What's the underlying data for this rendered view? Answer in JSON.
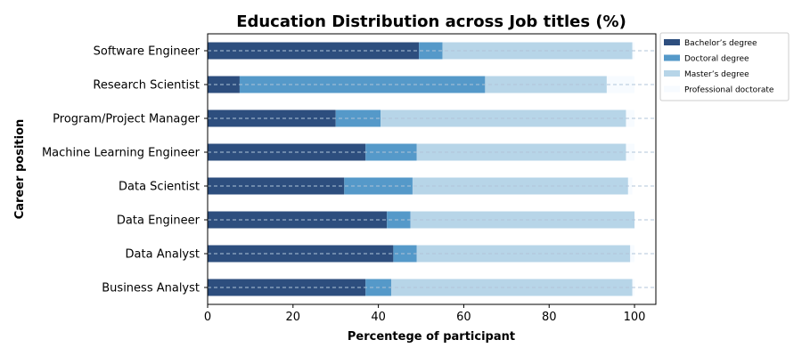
{
  "chart_data": {
    "type": "bar",
    "orientation": "horizontal",
    "stacked": true,
    "title": "Education Distribution across Job titles (%)",
    "xlabel": "Percentege of participant",
    "ylabel": "Career position",
    "xlim": [
      0,
      105
    ],
    "xticks": [
      0,
      20,
      40,
      60,
      80,
      100
    ],
    "grid": "x dashed",
    "legend_position": "outside-top-right",
    "categories": [
      "Business Analyst",
      "Data Analyst",
      "Data Engineer",
      "Data Scientist",
      "Machine Learning Engineer",
      "Program/Project Manager",
      "Research Scientist",
      "Software Engineer"
    ],
    "series": [
      {
        "name": "Bachelor’s degree",
        "color": "#2d4e7e",
        "values": [
          37.0,
          43.5,
          42.0,
          32.0,
          37.0,
          30.0,
          7.5,
          49.5
        ]
      },
      {
        "name": "Doctoral degree",
        "color": "#5599c9",
        "values": [
          6.0,
          5.5,
          5.5,
          16.0,
          12.0,
          10.5,
          57.5,
          5.5
        ]
      },
      {
        "name": "Master’s degree",
        "color": "#b7d5e8",
        "values": [
          56.5,
          50.0,
          52.5,
          50.5,
          49.0,
          57.5,
          28.5,
          44.5
        ]
      },
      {
        "name": "Professional doctorate",
        "color": "#f7fbff",
        "values": [
          0.5,
          1.0,
          0,
          1.0,
          2.0,
          2.0,
          6.5,
          0.5
        ]
      }
    ]
  }
}
